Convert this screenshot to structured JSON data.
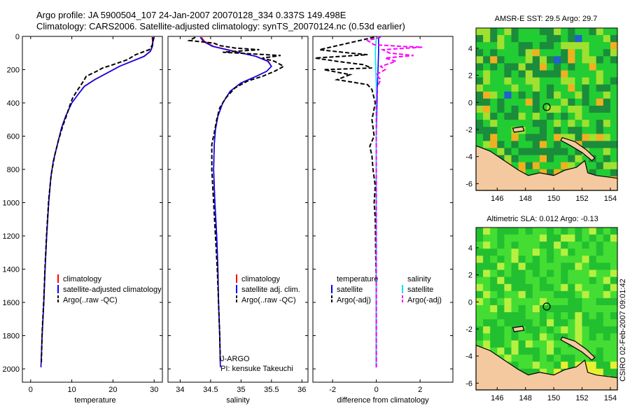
{
  "header": {
    "line1": "Argo profile: JA 5900504_107 24-Jan-2007 20070128_334 0.337S 149.498E",
    "line2": "Climatology: CARS2006. Satellite-adjusted climatology: synTS_20070124.nc (0.53d earlier)"
  },
  "side_label": "CSIRO 02-Feb-2007 09:01:42",
  "chart_data": [
    {
      "id": "temperature",
      "type": "line",
      "xlabel": "temperature",
      "ylabel": "",
      "xlim": [
        -2,
        32
      ],
      "ylim": [
        2080,
        0
      ],
      "xticks": [
        0,
        10,
        20,
        30
      ],
      "yticks": [
        0,
        200,
        400,
        600,
        800,
        1000,
        1200,
        1400,
        1600,
        1800,
        2000
      ],
      "legend": [
        "climatology",
        "satellite-adjusted climatology",
        "Argo(..raw -QC)"
      ],
      "series": [
        {
          "name": "climatology",
          "color": "#ff0000",
          "style": "solid",
          "points": [
            [
              29.5,
              5
            ],
            [
              29.6,
              30
            ],
            [
              29.5,
              60
            ],
            [
              29.0,
              90
            ],
            [
              27.5,
              120
            ],
            [
              24.5,
              150
            ],
            [
              21.5,
              180
            ],
            [
              18.5,
              220
            ],
            [
              15.5,
              260
            ],
            [
              13,
              300
            ],
            [
              11.5,
              350
            ],
            [
              10,
              400
            ],
            [
              8.5,
              480
            ],
            [
              7.5,
              550
            ],
            [
              6.5,
              650
            ],
            [
              5.5,
              750
            ],
            [
              4.9,
              850
            ],
            [
              4.4,
              1000
            ],
            [
              3.9,
              1200
            ],
            [
              3.5,
              1400
            ],
            [
              3.2,
              1600
            ],
            [
              2.8,
              1800
            ],
            [
              2.5,
              1990
            ]
          ]
        },
        {
          "name": "satellite-adjusted climatology",
          "color": "#0000ff",
          "style": "solid",
          "points": [
            [
              29.6,
              5
            ],
            [
              29.7,
              30
            ],
            [
              29.6,
              60
            ],
            [
              29.1,
              90
            ],
            [
              27.6,
              120
            ],
            [
              24.6,
              150
            ],
            [
              21.6,
              180
            ],
            [
              18.6,
              220
            ],
            [
              15.6,
              260
            ],
            [
              13.1,
              300
            ],
            [
              11.5,
              350
            ],
            [
              10,
              400
            ],
            [
              8.5,
              480
            ],
            [
              7.5,
              550
            ],
            [
              6.5,
              650
            ],
            [
              5.5,
              750
            ],
            [
              4.9,
              850
            ],
            [
              4.4,
              1000
            ],
            [
              3.9,
              1200
            ],
            [
              3.5,
              1400
            ],
            [
              3.2,
              1600
            ],
            [
              2.8,
              1800
            ],
            [
              2.5,
              1990
            ]
          ]
        },
        {
          "name": "Argo(..raw -QC)",
          "color": "#000000",
          "style": "dashed",
          "points": [
            [
              29.7,
              5
            ],
            [
              29.8,
              20
            ],
            [
              29.6,
              50
            ],
            [
              28.8,
              80
            ],
            [
              25.5,
              110
            ],
            [
              23.5,
              140
            ],
            [
              20,
              170
            ],
            [
              17.5,
              190
            ],
            [
              16,
              210
            ],
            [
              13.5,
              240
            ],
            [
              12.8,
              270
            ],
            [
              12,
              300
            ],
            [
              11.2,
              330
            ],
            [
              10.2,
              370
            ],
            [
              9.6,
              410
            ],
            [
              8.8,
              470
            ],
            [
              7.8,
              540
            ],
            [
              6.8,
              620
            ],
            [
              5.8,
              720
            ],
            [
              5.0,
              830
            ],
            [
              4.4,
              980
            ],
            [
              3.9,
              1180
            ],
            [
              3.5,
              1380
            ],
            [
              3.2,
              1580
            ],
            [
              2.8,
              1780
            ],
            [
              2.6,
              1960
            ]
          ]
        }
      ]
    },
    {
      "id": "salinity",
      "type": "line",
      "xlabel": "salinity",
      "xlim": [
        33.8,
        36.1
      ],
      "ylim": [
        2080,
        0
      ],
      "xticks": [
        34,
        34.5,
        35,
        35.5,
        36
      ],
      "legend": [
        "climatology",
        "satellite adj. clim.",
        "Argo(..raw -QC)"
      ],
      "annotations": [
        "J-ARGO",
        "PI: kensuke Takeuchi"
      ],
      "series": [
        {
          "name": "climatology",
          "color": "#ff0000",
          "style": "solid",
          "points": [
            [
              34.35,
              5
            ],
            [
              34.4,
              30
            ],
            [
              34.55,
              60
            ],
            [
              34.9,
              90
            ],
            [
              35.25,
              120
            ],
            [
              35.45,
              150
            ],
            [
              35.5,
              180
            ],
            [
              35.42,
              210
            ],
            [
              35.25,
              240
            ],
            [
              35.0,
              280
            ],
            [
              34.82,
              330
            ],
            [
              34.7,
              400
            ],
            [
              34.62,
              480
            ],
            [
              34.58,
              560
            ],
            [
              34.56,
              650
            ],
            [
              34.55,
              800
            ],
            [
              34.57,
              1000
            ],
            [
              34.6,
              1200
            ],
            [
              34.62,
              1400
            ],
            [
              34.63,
              1600
            ],
            [
              34.65,
              1800
            ],
            [
              34.66,
              1990
            ]
          ]
        },
        {
          "name": "satellite adj. clim.",
          "color": "#0000ff",
          "style": "solid",
          "points": [
            [
              34.33,
              5
            ],
            [
              34.38,
              30
            ],
            [
              34.53,
              60
            ],
            [
              34.88,
              90
            ],
            [
              35.24,
              120
            ],
            [
              35.44,
              150
            ],
            [
              35.5,
              180
            ],
            [
              35.42,
              210
            ],
            [
              35.25,
              240
            ],
            [
              35.0,
              280
            ],
            [
              34.82,
              330
            ],
            [
              34.7,
              400
            ],
            [
              34.62,
              480
            ],
            [
              34.58,
              560
            ],
            [
              34.56,
              650
            ],
            [
              34.55,
              800
            ],
            [
              34.57,
              1000
            ],
            [
              34.6,
              1200
            ],
            [
              34.62,
              1400
            ],
            [
              34.63,
              1600
            ],
            [
              34.65,
              1800
            ],
            [
              34.66,
              1990
            ]
          ]
        },
        {
          "name": "Argo(..raw -QC)",
          "color": "#000000",
          "style": "dashed",
          "points": [
            [
              34.25,
              5
            ],
            [
              34.15,
              25
            ],
            [
              34.55,
              40
            ],
            [
              34.65,
              55
            ],
            [
              34.9,
              70
            ],
            [
              35.3,
              80
            ],
            [
              34.7,
              95
            ],
            [
              35.65,
              115
            ],
            [
              35.35,
              130
            ],
            [
              35.55,
              150
            ],
            [
              35.7,
              180
            ],
            [
              35.55,
              210
            ],
            [
              35.35,
              240
            ],
            [
              35.1,
              270
            ],
            [
              34.9,
              310
            ],
            [
              34.75,
              370
            ],
            [
              34.65,
              430
            ],
            [
              34.6,
              500
            ],
            [
              34.56,
              580
            ],
            [
              34.52,
              650
            ],
            [
              34.52,
              800
            ],
            [
              34.55,
              1000
            ],
            [
              34.58,
              1200
            ],
            [
              34.61,
              1400
            ],
            [
              34.63,
              1600
            ],
            [
              34.65,
              1800
            ],
            [
              34.66,
              1960
            ]
          ]
        }
      ]
    },
    {
      "id": "difference",
      "type": "line",
      "xlabel": "difference from climatology",
      "xlim": [
        -2.9,
        3.5
      ],
      "ylim": [
        2080,
        0
      ],
      "xticks": [
        -2,
        0,
        2
      ],
      "legend_groups": [
        {
          "title": "temperature",
          "items": [
            "satellite",
            "Argo(-adj)"
          ]
        },
        {
          "title": "salinity",
          "items": [
            "satellite",
            "Argo(-adj)"
          ]
        }
      ],
      "series": [
        {
          "name": "temperature satellite",
          "color": "#0000ff",
          "style": "solid",
          "points": [
            [
              0.1,
              5
            ],
            [
              0.1,
              100
            ],
            [
              0.05,
              300
            ],
            [
              0,
              600
            ],
            [
              0,
              1000
            ],
            [
              0,
              1990
            ]
          ]
        },
        {
          "name": "temperature Argo(-adj)",
          "color": "#000000",
          "style": "dashed",
          "points": [
            [
              -0.1,
              5
            ],
            [
              -2.6,
              80
            ],
            [
              -1.2,
              100
            ],
            [
              -0.4,
              110
            ],
            [
              -2.8,
              130
            ],
            [
              -1.8,
              150
            ],
            [
              -0.6,
              170
            ],
            [
              -0.2,
              190
            ],
            [
              -2.4,
              200
            ],
            [
              -1.2,
              230
            ],
            [
              -1.8,
              260
            ],
            [
              -0.4,
              290
            ],
            [
              -0.2,
              320
            ],
            [
              -0.05,
              400
            ],
            [
              -0.2,
              500
            ],
            [
              -0.1,
              600
            ],
            [
              -0.3,
              660
            ],
            [
              -0.2,
              720
            ],
            [
              -0.15,
              800
            ],
            [
              -0.05,
              900
            ],
            [
              -0.1,
              1000
            ],
            [
              -0.05,
              1100
            ],
            [
              -0.03,
              1300
            ],
            [
              0,
              1500
            ],
            [
              0,
              1990
            ]
          ]
        },
        {
          "name": "salinity satellite",
          "color": "#00e5ee",
          "style": "solid",
          "points": [
            [
              0,
              5
            ],
            [
              -0.05,
              100
            ],
            [
              0,
              300
            ],
            [
              0,
              600
            ],
            [
              0,
              1000
            ],
            [
              0,
              1990
            ]
          ]
        },
        {
          "name": "salinity Argo(-adj)",
          "color": "#ff00ff",
          "style": "dashed",
          "points": [
            [
              0.2,
              5
            ],
            [
              -0.4,
              25
            ],
            [
              -0.1,
              50
            ],
            [
              1.2,
              60
            ],
            [
              2.1,
              65
            ],
            [
              0.3,
              80
            ],
            [
              0.6,
              100
            ],
            [
              1.7,
              115
            ],
            [
              0.4,
              130
            ],
            [
              0.9,
              150
            ],
            [
              0.2,
              180
            ],
            [
              0.4,
              200
            ],
            [
              0.0,
              230
            ],
            [
              0.2,
              260
            ],
            [
              0.05,
              300
            ],
            [
              0,
              400
            ],
            [
              0,
              1990
            ]
          ]
        }
      ]
    }
  ],
  "maps": [
    {
      "id": "sst",
      "title": "AMSR-E SST: 29.5 Argo: 29.7",
      "x_ticks": [
        "146",
        "148",
        "150",
        "152",
        "154"
      ],
      "y_ticks": [
        "4",
        "2",
        "0",
        "-2",
        "-4",
        "-6"
      ],
      "xlim": [
        144.5,
        154.5
      ],
      "ylim": [
        -6.5,
        5.5
      ],
      "marker": [
        149.5,
        -0.34
      ],
      "colors": {
        "low": "#1a8c3c",
        "mid": "#22cc33",
        "high": "#a0e030",
        "hot": "#f0b020",
        "cold": "#2060d0",
        "land": "#f5c9a0",
        "coast": "#000000"
      }
    },
    {
      "id": "sla",
      "title": "Altimetric SLA: 0.012 Argo: -0.13",
      "x_ticks": [
        "146",
        "148",
        "150",
        "152",
        "154"
      ],
      "y_ticks": [
        "4",
        "2",
        "0",
        "-2",
        "-4",
        "-6"
      ],
      "xlim": [
        144.5,
        154.5
      ],
      "ylim": [
        -6.5,
        5.5
      ],
      "marker": [
        149.5,
        -0.34
      ],
      "colors": {
        "low": "#22c030",
        "mid": "#44dd33",
        "high": "#b8f040",
        "hot": "#e8f030",
        "land": "#f5c9a0",
        "coast": "#000000"
      }
    }
  ]
}
